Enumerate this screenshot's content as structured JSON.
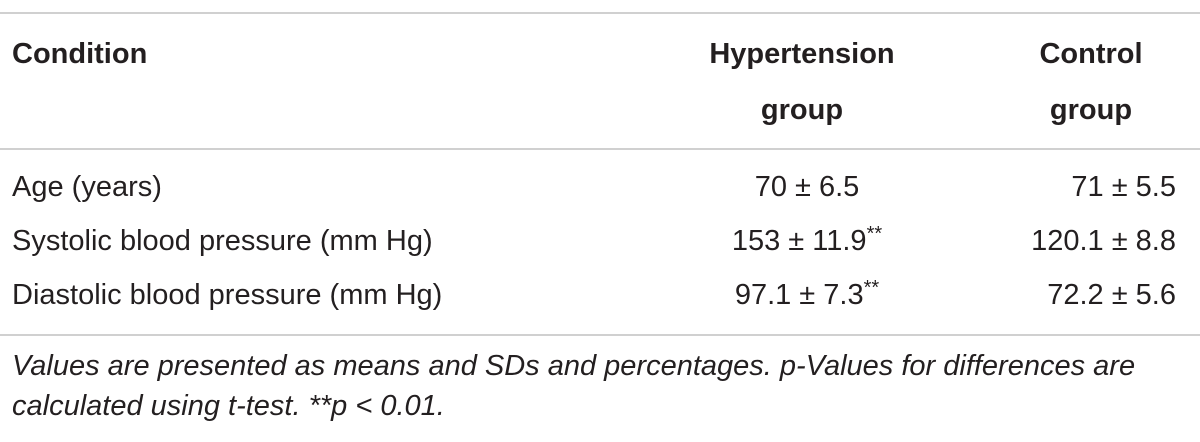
{
  "table": {
    "header": [
      "Condition",
      "Hypertension group",
      "Control group"
    ],
    "rows": [
      {
        "label": "Age (years)",
        "hypertension": {
          "text": "70 ± 6.5"
        },
        "control": "71 ± 5.5"
      },
      {
        "label": "Systolic blood pressure (mm Hg)",
        "hypertension": {
          "text": "153 ± 11.9",
          "sup": "**"
        },
        "control": "120.1 ± 8.8"
      },
      {
        "label": "Diastolic blood pressure (mm Hg)",
        "hypertension": {
          "text": "97.1 ± 7.3",
          "sup": "**"
        },
        "control": "72.2 ± 5.6"
      }
    ],
    "footnote": "Values are presented as means and SDs and percentages. p-Values for differences are calculated using t-test. **p < 0.01."
  }
}
